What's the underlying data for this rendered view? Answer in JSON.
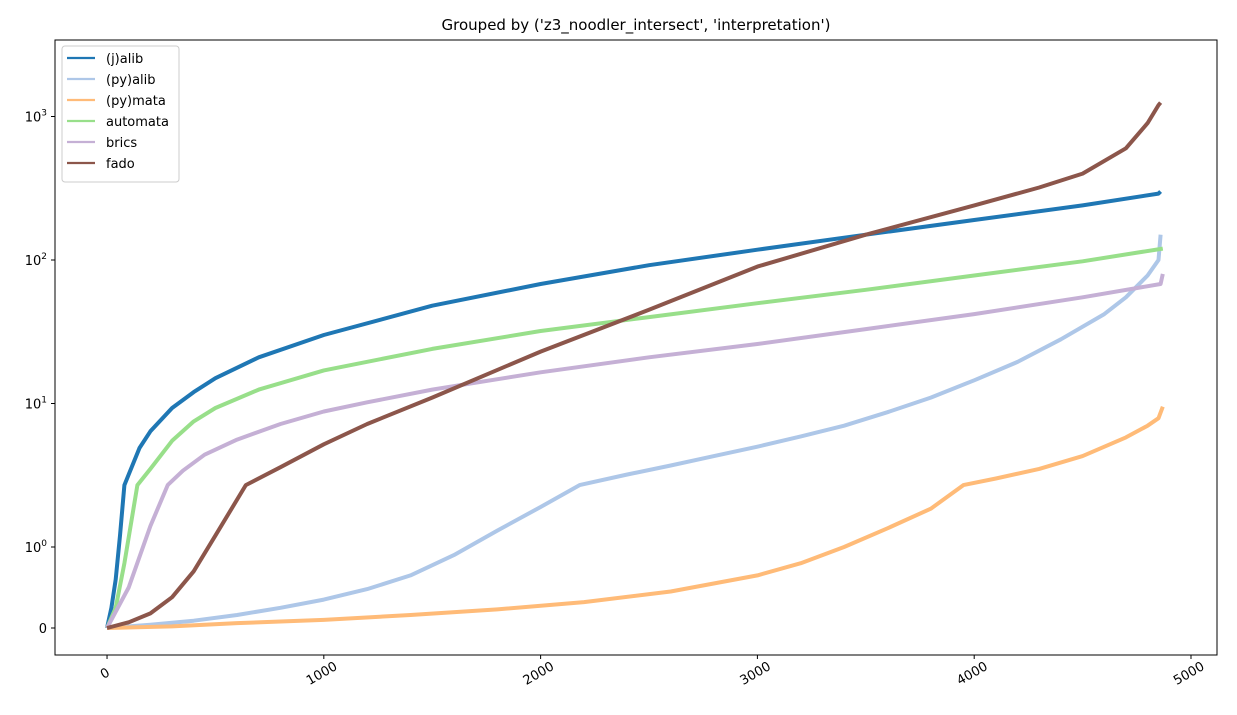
{
  "chart_data": {
    "type": "line",
    "title": "Grouped by ('z3_noodler_intersect', 'interpretation')",
    "xlabel": "",
    "ylabel": "",
    "xlim": [
      -240,
      5120
    ],
    "y_scale": "symlog",
    "y_linthresh": 1,
    "x_ticks": [
      0,
      1000,
      2000,
      3000,
      4000,
      5000
    ],
    "x_tick_labels": [
      "0",
      "1000",
      "2000",
      "3000",
      "4000",
      "5000"
    ],
    "y_ticks": [
      0,
      1,
      10,
      100,
      1000
    ],
    "y_tick_labels": [
      {
        "base": "0",
        "exp": ""
      },
      {
        "base": "10",
        "exp": "0"
      },
      {
        "base": "10",
        "exp": "1"
      },
      {
        "base": "10",
        "exp": "2"
      },
      {
        "base": "10",
        "exp": "3"
      }
    ],
    "legend_position": "top-left",
    "grid": false,
    "series": [
      {
        "name": "(j)alib",
        "color": "#1f77b4",
        "points": [
          [
            0,
            0
          ],
          [
            20,
            0.25
          ],
          [
            40,
            0.6
          ],
          [
            60,
            1.2
          ],
          [
            80,
            2.7
          ],
          [
            100,
            3.2
          ],
          [
            150,
            4.9
          ],
          [
            200,
            6.4
          ],
          [
            300,
            9.3
          ],
          [
            400,
            12
          ],
          [
            500,
            15
          ],
          [
            700,
            21
          ],
          [
            1000,
            30
          ],
          [
            1500,
            48
          ],
          [
            2000,
            68
          ],
          [
            2500,
            92
          ],
          [
            3000,
            118
          ],
          [
            3500,
            150
          ],
          [
            4000,
            190
          ],
          [
            4500,
            240
          ],
          [
            4850,
            290
          ],
          [
            4860,
            300
          ]
        ]
      },
      {
        "name": "(py)alib",
        "color": "#aec7e8",
        "points": [
          [
            0,
            0
          ],
          [
            200,
            0.04
          ],
          [
            400,
            0.09
          ],
          [
            600,
            0.16
          ],
          [
            800,
            0.25
          ],
          [
            1000,
            0.35
          ],
          [
            1200,
            0.48
          ],
          [
            1400,
            0.65
          ],
          [
            1600,
            0.9
          ],
          [
            1800,
            1.3
          ],
          [
            2000,
            1.9
          ],
          [
            2180,
            2.7
          ],
          [
            2400,
            3.2
          ],
          [
            2600,
            3.7
          ],
          [
            2800,
            4.3
          ],
          [
            3000,
            5.0
          ],
          [
            3200,
            5.9
          ],
          [
            3400,
            7.0
          ],
          [
            3600,
            8.7
          ],
          [
            3800,
            11
          ],
          [
            4000,
            14.5
          ],
          [
            4200,
            19.5
          ],
          [
            4400,
            28
          ],
          [
            4600,
            42
          ],
          [
            4700,
            55
          ],
          [
            4800,
            78
          ],
          [
            4850,
            100
          ],
          [
            4860,
            150
          ]
        ]
      },
      {
        "name": "(py)mata",
        "color": "#ffbb78",
        "points": [
          [
            0,
            0
          ],
          [
            300,
            0.02
          ],
          [
            600,
            0.06
          ],
          [
            1000,
            0.1
          ],
          [
            1400,
            0.16
          ],
          [
            1800,
            0.23
          ],
          [
            2200,
            0.32
          ],
          [
            2600,
            0.45
          ],
          [
            3000,
            0.65
          ],
          [
            3200,
            0.8
          ],
          [
            3400,
            1.0
          ],
          [
            3600,
            1.35
          ],
          [
            3800,
            1.85
          ],
          [
            3950,
            2.7
          ],
          [
            4100,
            3.0
          ],
          [
            4300,
            3.5
          ],
          [
            4500,
            4.3
          ],
          [
            4700,
            5.8
          ],
          [
            4800,
            7.0
          ],
          [
            4850,
            7.9
          ],
          [
            4870,
            9.5
          ]
        ]
      },
      {
        "name": "automata",
        "color": "#98df8a",
        "points": [
          [
            0,
            0
          ],
          [
            40,
            0.25
          ],
          [
            80,
            0.8
          ],
          [
            140,
            2.7
          ],
          [
            200,
            3.5
          ],
          [
            300,
            5.5
          ],
          [
            400,
            7.5
          ],
          [
            500,
            9.3
          ],
          [
            700,
            12.5
          ],
          [
            1000,
            17
          ],
          [
            1500,
            24
          ],
          [
            2000,
            32
          ],
          [
            2500,
            40
          ],
          [
            3000,
            50
          ],
          [
            3500,
            62
          ],
          [
            4000,
            78
          ],
          [
            4500,
            98
          ],
          [
            4870,
            120
          ]
        ]
      },
      {
        "name": "brics",
        "color": "#c5b0d5",
        "points": [
          [
            0,
            0
          ],
          [
            100,
            0.5
          ],
          [
            200,
            1.4
          ],
          [
            280,
            2.7
          ],
          [
            350,
            3.4
          ],
          [
            450,
            4.4
          ],
          [
            600,
            5.6
          ],
          [
            800,
            7.2
          ],
          [
            1000,
            8.8
          ],
          [
            1200,
            10.2
          ],
          [
            1500,
            12.5
          ],
          [
            2000,
            16.5
          ],
          [
            2500,
            21
          ],
          [
            3000,
            26
          ],
          [
            3500,
            33
          ],
          [
            4000,
            42
          ],
          [
            4500,
            55
          ],
          [
            4860,
            68
          ],
          [
            4870,
            80
          ]
        ]
      },
      {
        "name": "fado",
        "color": "#8c564b",
        "points": [
          [
            0,
            0
          ],
          [
            100,
            0.07
          ],
          [
            200,
            0.18
          ],
          [
            300,
            0.38
          ],
          [
            400,
            0.7
          ],
          [
            500,
            1.2
          ],
          [
            640,
            2.7
          ],
          [
            800,
            3.6
          ],
          [
            1000,
            5.2
          ],
          [
            1200,
            7.2
          ],
          [
            1500,
            11
          ],
          [
            2000,
            23
          ],
          [
            2500,
            45
          ],
          [
            3000,
            90
          ],
          [
            3500,
            150
          ],
          [
            4000,
            240
          ],
          [
            4300,
            320
          ],
          [
            4500,
            400
          ],
          [
            4700,
            600
          ],
          [
            4800,
            900
          ],
          [
            4850,
            1200
          ],
          [
            4860,
            1250
          ]
        ]
      }
    ]
  }
}
